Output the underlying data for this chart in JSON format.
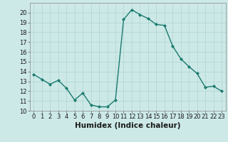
{
  "x": [
    0,
    1,
    2,
    3,
    4,
    5,
    6,
    7,
    8,
    9,
    10,
    11,
    12,
    13,
    14,
    15,
    16,
    17,
    18,
    19,
    20,
    21,
    22,
    23
  ],
  "y": [
    13.7,
    13.2,
    12.7,
    13.1,
    12.3,
    11.1,
    11.8,
    10.6,
    10.4,
    10.4,
    11.1,
    19.3,
    20.3,
    19.8,
    19.4,
    18.8,
    18.7,
    16.6,
    15.3,
    14.5,
    13.8,
    12.4,
    12.5,
    12.0
  ],
  "line_color": "#1a7a6e",
  "marker": "D",
  "marker_size": 2.0,
  "line_width": 1.0,
  "bg_color": "#cce9e7",
  "grid_color": "#aed4d1",
  "xlabel": "Humidex (Indice chaleur)",
  "xlim": [
    -0.5,
    23.5
  ],
  "ylim": [
    10,
    21
  ],
  "yticks": [
    10,
    11,
    12,
    13,
    14,
    15,
    16,
    17,
    18,
    19,
    20
  ],
  "xticks": [
    0,
    1,
    2,
    3,
    4,
    5,
    6,
    7,
    8,
    9,
    10,
    11,
    12,
    13,
    14,
    15,
    16,
    17,
    18,
    19,
    20,
    21,
    22,
    23
  ],
  "xlabel_fontsize": 7.5,
  "tick_fontsize": 6.0
}
